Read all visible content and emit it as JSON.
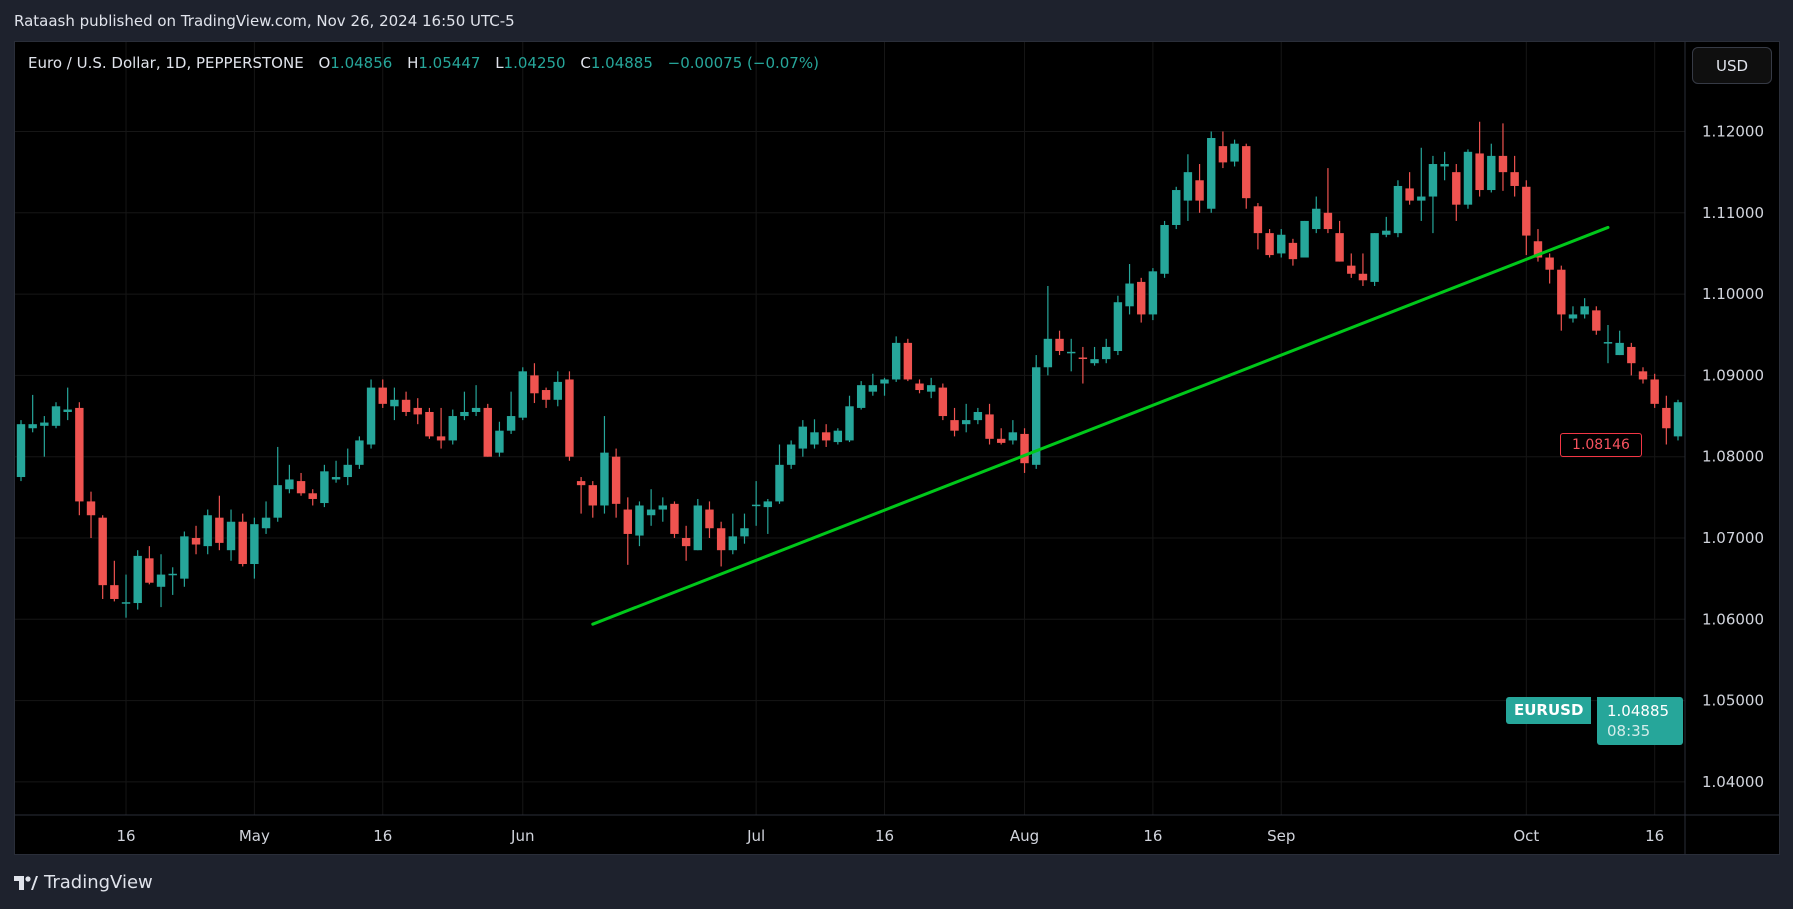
{
  "publisher_line": "Rataash published on TradingView.com, Nov 26, 2024 16:50 UTC-5",
  "legend": {
    "title": "Euro / U.S. Dollar, 1D, PEPPERSTONE",
    "open_label": "O",
    "open": "1.04856",
    "high_label": "H",
    "high": "1.05447",
    "low_label": "L",
    "low": "1.04250",
    "close_label": "C",
    "close": "1.04885",
    "change": "−0.00075 (−0.07%)"
  },
  "currency_button": "USD",
  "symbol_tag": "EURUSD",
  "last_price": "1.04885",
  "countdown": "08:35",
  "line_price_label": "1.08146",
  "logo_text": "TradingView",
  "colors": {
    "up": "#26a69a",
    "down": "#ef5350",
    "trendline": "#00c81a",
    "grid": "#1a1a1a",
    "background": "#000000"
  },
  "chart_data": {
    "type": "candlestick",
    "symbol": "EURUSD",
    "timeframe": "1D",
    "ylim": [
      1.035,
      1.125
    ],
    "grid": true,
    "y_ticks": [
      "1.12000",
      "1.11000",
      "1.10000",
      "1.09000",
      "1.08000",
      "1.07000",
      "1.06000",
      "1.05000",
      "1.04000"
    ],
    "x_ticks": [
      {
        "label": "16",
        "date": "2024-04-16"
      },
      {
        "label": "May",
        "date": "2024-05-01"
      },
      {
        "label": "16",
        "date": "2024-05-16"
      },
      {
        "label": "Jun",
        "date": "2024-06-03"
      },
      {
        "label": "Jul",
        "date": "2024-07-01"
      },
      {
        "label": "16",
        "date": "2024-07-16"
      },
      {
        "label": "Aug",
        "date": "2024-08-01"
      },
      {
        "label": "16",
        "date": "2024-08-16"
      },
      {
        "label": "Sep",
        "date": "2024-09-02"
      },
      {
        "label": "Oct",
        "date": "2024-10-01"
      },
      {
        "label": "16",
        "date": "2024-10-16"
      }
    ],
    "columns": [
      "date",
      "open",
      "high",
      "low",
      "close"
    ],
    "candles": [
      [
        "2024-04-03",
        1.0775,
        1.0845,
        1.077,
        1.084
      ],
      [
        "2024-04-04",
        1.0835,
        1.0876,
        1.083,
        1.084
      ],
      [
        "2024-04-05",
        1.0838,
        1.085,
        1.08,
        1.0842
      ],
      [
        "2024-04-08",
        1.0838,
        1.0867,
        1.0835,
        1.0862
      ],
      [
        "2024-04-09",
        1.0855,
        1.0885,
        1.0845,
        1.0858
      ],
      [
        "2024-04-10",
        1.086,
        1.0867,
        1.0728,
        1.0745
      ],
      [
        "2024-04-11",
        1.0745,
        1.0757,
        1.07,
        1.0728
      ],
      [
        "2024-04-12",
        1.0725,
        1.0728,
        1.0625,
        1.0642
      ],
      [
        "2024-04-15",
        1.0642,
        1.0672,
        1.0622,
        1.0625
      ],
      [
        "2024-04-16",
        1.062,
        1.0655,
        1.0602,
        1.0621
      ],
      [
        "2024-04-17",
        1.062,
        1.0685,
        1.0612,
        1.0678
      ],
      [
        "2024-04-18",
        1.0675,
        1.069,
        1.0643,
        1.0645
      ],
      [
        "2024-04-19",
        1.064,
        1.068,
        1.0615,
        1.0655
      ],
      [
        "2024-04-22",
        1.0655,
        1.0664,
        1.063,
        1.0656
      ],
      [
        "2024-04-23",
        1.065,
        1.0708,
        1.064,
        1.0702
      ],
      [
        "2024-04-24",
        1.07,
        1.0715,
        1.068,
        1.0692
      ],
      [
        "2024-04-25",
        1.069,
        1.0735,
        1.068,
        1.0728
      ],
      [
        "2024-04-26",
        1.0725,
        1.0752,
        1.0685,
        1.0694
      ],
      [
        "2024-04-29",
        1.0685,
        1.0735,
        1.0672,
        1.072
      ],
      [
        "2024-04-30",
        1.072,
        1.073,
        1.0665,
        1.0668
      ],
      [
        "2024-05-01",
        1.0668,
        1.0725,
        1.065,
        1.0717
      ],
      [
        "2024-05-02",
        1.0712,
        1.0745,
        1.0705,
        1.0725
      ],
      [
        "2024-05-03",
        1.0725,
        1.0812,
        1.072,
        1.0765
      ],
      [
        "2024-05-06",
        1.076,
        1.079,
        1.0755,
        1.0772
      ],
      [
        "2024-05-07",
        1.077,
        1.078,
        1.0752,
        1.0755
      ],
      [
        "2024-05-08",
        1.0755,
        1.076,
        1.074,
        1.0748
      ],
      [
        "2024-05-09",
        1.0743,
        1.079,
        1.0738,
        1.0782
      ],
      [
        "2024-05-10",
        1.0772,
        1.0795,
        1.0768,
        1.0775
      ],
      [
        "2024-05-13",
        1.0775,
        1.081,
        1.0765,
        1.079
      ],
      [
        "2024-05-14",
        1.079,
        1.0825,
        1.0785,
        1.082
      ],
      [
        "2024-05-15",
        1.0815,
        1.0895,
        1.081,
        1.0885
      ],
      [
        "2024-05-16",
        1.0885,
        1.0895,
        1.086,
        1.0865
      ],
      [
        "2024-05-17",
        1.0862,
        1.0885,
        1.0845,
        1.087
      ],
      [
        "2024-05-20",
        1.087,
        1.088,
        1.085,
        1.0855
      ],
      [
        "2024-05-21",
        1.086,
        1.0872,
        1.084,
        1.0852
      ],
      [
        "2024-05-22",
        1.0855,
        1.086,
        1.0822,
        1.0825
      ],
      [
        "2024-05-23",
        1.0825,
        1.086,
        1.081,
        1.082
      ],
      [
        "2024-05-24",
        1.082,
        1.0858,
        1.0815,
        1.085
      ],
      [
        "2024-05-27",
        1.085,
        1.088,
        1.0845,
        1.0855
      ],
      [
        "2024-05-28",
        1.0855,
        1.0888,
        1.085,
        1.086
      ],
      [
        "2024-05-29",
        1.086,
        1.0865,
        1.08,
        1.08
      ],
      [
        "2024-05-30",
        1.0805,
        1.0843,
        1.08,
        1.0832
      ],
      [
        "2024-05-31",
        1.0832,
        1.088,
        1.0828,
        1.085
      ],
      [
        "2024-06-03",
        1.0848,
        1.091,
        1.0845,
        1.0905
      ],
      [
        "2024-06-04",
        1.09,
        1.0915,
        1.0866,
        1.0878
      ],
      [
        "2024-06-05",
        1.0882,
        1.0885,
        1.086,
        1.087
      ],
      [
        "2024-06-06",
        1.087,
        1.0905,
        1.0862,
        1.0892
      ],
      [
        "2024-06-07",
        1.0895,
        1.0905,
        1.0795,
        1.08
      ],
      [
        "2024-06-10",
        1.077,
        1.0775,
        1.073,
        1.0765
      ],
      [
        "2024-06-11",
        1.0765,
        1.077,
        1.0725,
        1.074
      ],
      [
        "2024-06-12",
        1.074,
        1.085,
        1.073,
        1.0805
      ],
      [
        "2024-06-13",
        1.08,
        1.081,
        1.0725,
        1.0742
      ],
      [
        "2024-06-14",
        1.0735,
        1.075,
        1.0667,
        1.0705
      ],
      [
        "2024-06-17",
        1.0703,
        1.0745,
        1.069,
        1.074
      ],
      [
        "2024-06-18",
        1.0728,
        1.076,
        1.0715,
        1.0735
      ],
      [
        "2024-06-19",
        1.0735,
        1.075,
        1.072,
        1.074
      ],
      [
        "2024-06-20",
        1.0742,
        1.0745,
        1.07,
        1.0705
      ],
      [
        "2024-06-21",
        1.07,
        1.0715,
        1.0672,
        1.069
      ],
      [
        "2024-06-24",
        1.0685,
        1.0748,
        1.0685,
        1.074
      ],
      [
        "2024-06-25",
        1.0735,
        1.0745,
        1.07,
        1.0712
      ],
      [
        "2024-06-26",
        1.0712,
        1.072,
        1.0665,
        1.0685
      ],
      [
        "2024-06-27",
        1.0685,
        1.073,
        1.068,
        1.0702
      ],
      [
        "2024-06-28",
        1.0702,
        1.073,
        1.0693,
        1.0712
      ],
      [
        "2024-07-01",
        1.074,
        1.077,
        1.0715,
        1.0741
      ],
      [
        "2024-07-02",
        1.0738,
        1.0748,
        1.0705,
        1.0745
      ],
      [
        "2024-07-03",
        1.0745,
        1.0815,
        1.0742,
        1.079
      ],
      [
        "2024-07-04",
        1.079,
        1.082,
        1.0785,
        1.0815
      ],
      [
        "2024-07-05",
        1.081,
        1.0845,
        1.08,
        1.0837
      ],
      [
        "2024-07-08",
        1.0815,
        1.0846,
        1.081,
        1.083
      ],
      [
        "2024-07-09",
        1.083,
        1.084,
        1.0812,
        1.082
      ],
      [
        "2024-07-10",
        1.0818,
        1.0835,
        1.0815,
        1.0832
      ],
      [
        "2024-07-11",
        1.082,
        1.0875,
        1.0818,
        1.0862
      ],
      [
        "2024-07-12",
        1.086,
        1.0893,
        1.0858,
        1.0888
      ],
      [
        "2024-07-15",
        1.088,
        1.0902,
        1.0875,
        1.0888
      ],
      [
        "2024-07-16",
        1.089,
        1.0897,
        1.0875,
        1.0895
      ],
      [
        "2024-07-17",
        1.0895,
        1.0948,
        1.0892,
        1.094
      ],
      [
        "2024-07-18",
        1.094,
        1.0945,
        1.0893,
        1.0895
      ],
      [
        "2024-07-19",
        1.089,
        1.0895,
        1.0878,
        1.0882
      ],
      [
        "2024-07-22",
        1.088,
        1.0897,
        1.0872,
        1.0888
      ],
      [
        "2024-07-23",
        1.0885,
        1.089,
        1.0845,
        1.085
      ],
      [
        "2024-07-24",
        1.0845,
        1.086,
        1.0825,
        1.0832
      ],
      [
        "2024-07-25",
        1.084,
        1.0865,
        1.083,
        1.0845
      ],
      [
        "2024-07-26",
        1.0845,
        1.086,
        1.084,
        1.0855
      ],
      [
        "2024-07-29",
        1.0852,
        1.0865,
        1.0815,
        1.0822
      ],
      [
        "2024-07-30",
        1.0822,
        1.0835,
        1.0815,
        1.0817
      ],
      [
        "2024-07-31",
        1.082,
        1.0845,
        1.0815,
        1.083
      ],
      [
        "2024-08-01",
        1.0828,
        1.0835,
        1.078,
        1.0792
      ],
      [
        "2024-08-02",
        1.079,
        1.0925,
        1.0785,
        1.091
      ],
      [
        "2024-08-05",
        1.091,
        1.101,
        1.09,
        1.0945
      ],
      [
        "2024-08-06",
        1.0945,
        1.0955,
        1.0925,
        1.093
      ],
      [
        "2024-08-07",
        1.0928,
        1.0945,
        1.0905,
        1.0929
      ],
      [
        "2024-08-08",
        1.0922,
        1.0935,
        1.089,
        1.0921
      ],
      [
        "2024-08-09",
        1.0915,
        1.0935,
        1.0912,
        1.092
      ],
      [
        "2024-08-12",
        1.092,
        1.0945,
        1.0915,
        1.0935
      ],
      [
        "2024-08-13",
        1.093,
        1.0998,
        1.0925,
        1.099
      ],
      [
        "2024-08-14",
        1.0985,
        1.1037,
        1.0975,
        1.1013
      ],
      [
        "2024-08-15",
        1.1015,
        1.102,
        1.0965,
        1.0975
      ],
      [
        "2024-08-16",
        1.0975,
        1.1032,
        1.0968,
        1.1028
      ],
      [
        "2024-08-19",
        1.1025,
        1.109,
        1.102,
        1.1085
      ],
      [
        "2024-08-20",
        1.1085,
        1.1132,
        1.108,
        1.1128
      ],
      [
        "2024-08-21",
        1.1115,
        1.1172,
        1.109,
        1.115
      ],
      [
        "2024-08-22",
        1.114,
        1.116,
        1.11,
        1.1115
      ],
      [
        "2024-08-23",
        1.1105,
        1.12,
        1.11,
        1.1192
      ],
      [
        "2024-08-26",
        1.1182,
        1.12,
        1.1155,
        1.1162
      ],
      [
        "2024-08-27",
        1.1163,
        1.119,
        1.1157,
        1.1185
      ],
      [
        "2024-08-28",
        1.1182,
        1.1185,
        1.1105,
        1.1118
      ],
      [
        "2024-08-29",
        1.1108,
        1.1112,
        1.1055,
        1.1075
      ],
      [
        "2024-08-30",
        1.1075,
        1.108,
        1.1045,
        1.1048
      ],
      [
        "2024-09-02",
        1.105,
        1.108,
        1.1045,
        1.1073
      ],
      [
        "2024-09-03",
        1.1063,
        1.1068,
        1.1035,
        1.1043
      ],
      [
        "2024-09-04",
        1.1045,
        1.109,
        1.1045,
        1.109
      ],
      [
        "2024-09-05",
        1.108,
        1.112,
        1.1075,
        1.1105
      ],
      [
        "2024-09-06",
        1.11,
        1.1155,
        1.1075,
        1.108
      ],
      [
        "2024-09-09",
        1.1075,
        1.109,
        1.104,
        1.104
      ],
      [
        "2024-09-10",
        1.1035,
        1.105,
        1.102,
        1.1025
      ],
      [
        "2024-09-11",
        1.1025,
        1.105,
        1.101,
        1.1017
      ],
      [
        "2024-09-12",
        1.1015,
        1.1075,
        1.101,
        1.1075
      ],
      [
        "2024-09-13",
        1.1073,
        1.1095,
        1.107,
        1.1078
      ],
      [
        "2024-09-16",
        1.1075,
        1.114,
        1.107,
        1.1133
      ],
      [
        "2024-09-17",
        1.113,
        1.115,
        1.111,
        1.1115
      ],
      [
        "2024-09-18",
        1.1115,
        1.118,
        1.109,
        1.112
      ],
      [
        "2024-09-19",
        1.112,
        1.117,
        1.1075,
        1.116
      ],
      [
        "2024-09-20",
        1.1157,
        1.1175,
        1.114,
        1.116
      ],
      [
        "2024-09-23",
        1.115,
        1.116,
        1.109,
        1.111
      ],
      [
        "2024-09-24",
        1.111,
        1.1178,
        1.1105,
        1.1175
      ],
      [
        "2024-09-25",
        1.1173,
        1.1212,
        1.112,
        1.1128
      ],
      [
        "2024-09-26",
        1.1128,
        1.1185,
        1.1125,
        1.117
      ],
      [
        "2024-09-27",
        1.117,
        1.121,
        1.1127,
        1.115
      ],
      [
        "2024-09-30",
        1.115,
        1.117,
        1.112,
        1.1133
      ],
      [
        "2024-10-01",
        1.1132,
        1.114,
        1.1048,
        1.1072
      ],
      [
        "2024-10-02",
        1.1065,
        1.108,
        1.104,
        1.1045
      ],
      [
        "2024-10-03",
        1.1045,
        1.105,
        1.1013,
        1.103
      ],
      [
        "2024-10-04",
        1.103,
        1.1035,
        1.0955,
        1.0975
      ],
      [
        "2024-10-07",
        1.097,
        1.0985,
        1.0965,
        1.0975
      ],
      [
        "2024-10-08",
        1.0975,
        1.0995,
        1.097,
        1.0985
      ],
      [
        "2024-10-09",
        1.098,
        1.0985,
        1.095,
        1.0955
      ],
      [
        "2024-10-10",
        1.094,
        1.0962,
        1.0915,
        1.0941
      ],
      [
        "2024-10-11",
        1.0925,
        1.0955,
        1.0925,
        1.094
      ],
      [
        "2024-10-14",
        1.0935,
        1.094,
        1.09,
        1.0915
      ],
      [
        "2024-10-15",
        1.0905,
        1.091,
        1.089,
        1.0895
      ],
      [
        "2024-10-16",
        1.0895,
        1.0902,
        1.086,
        1.0865
      ],
      [
        "2024-10-17",
        1.086,
        1.0875,
        1.0815,
        1.0835
      ],
      [
        "2024-10-18",
        1.0825,
        1.087,
        1.082,
        1.0867
      ]
    ],
    "trendline": [
      {
        "date": "2024-06-11",
        "price": 1.0594
      },
      {
        "date": "2024-10-10",
        "price": 1.1082
      }
    ]
  }
}
